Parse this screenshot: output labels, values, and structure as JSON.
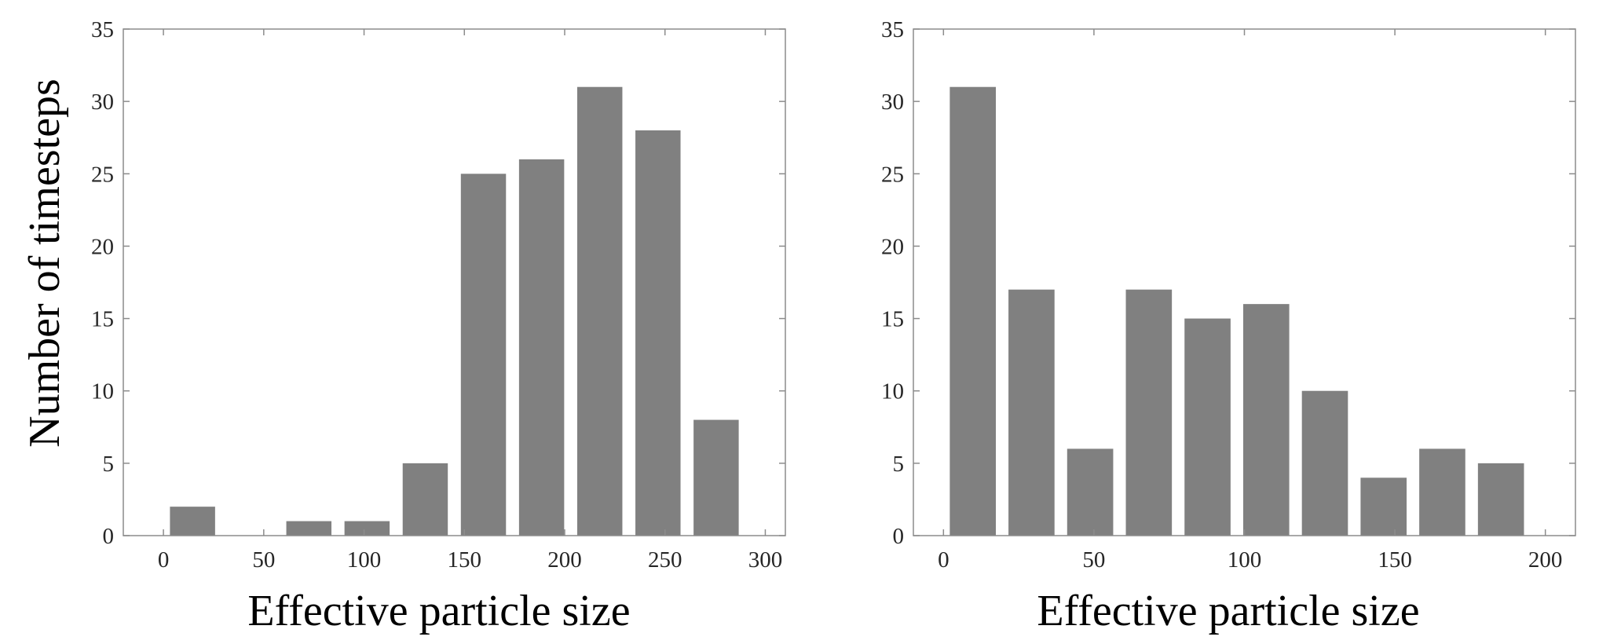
{
  "colors": {
    "bar": "#808080",
    "axis": "#8c8c8c",
    "text": "#262626"
  },
  "chart_data": [
    {
      "type": "bar",
      "title": "",
      "xlabel": "Effective particle size",
      "ylabel": "Number of timesteps",
      "xlim": [
        -20,
        310
      ],
      "ylim": [
        0,
        35
      ],
      "xticks": [
        0,
        50,
        100,
        150,
        200,
        250,
        300
      ],
      "yticks": [
        0,
        5,
        10,
        15,
        20,
        25,
        30,
        35
      ],
      "bin_width": 29,
      "bar_width": 22.5,
      "x": [
        14.5,
        43.5,
        72.5,
        101.5,
        130.5,
        159.5,
        188.5,
        217.5,
        246.5,
        275.5
      ],
      "values": [
        2,
        0,
        1,
        1,
        5,
        25,
        26,
        31,
        28,
        8
      ],
      "grid": false
    },
    {
      "type": "bar",
      "title": "",
      "xlabel": "Effective particle size",
      "ylabel": "",
      "xlim": [
        -10,
        210
      ],
      "ylim": [
        0,
        35
      ],
      "xticks": [
        0,
        50,
        100,
        150,
        200
      ],
      "yticks": [
        0,
        5,
        10,
        15,
        20,
        25,
        30,
        35
      ],
      "bin_width": 19.5,
      "bar_width": 15.3,
      "x": [
        9.75,
        29.25,
        48.75,
        68.25,
        87.75,
        107.25,
        126.75,
        146.25,
        165.75,
        185.25
      ],
      "values": [
        31,
        17,
        6,
        17,
        15,
        16,
        10,
        4,
        6,
        5
      ],
      "grid": false
    }
  ]
}
